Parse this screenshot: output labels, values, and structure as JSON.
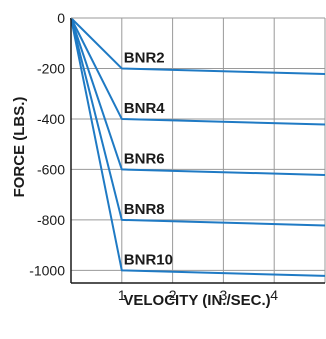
{
  "chart_data": {
    "type": "line",
    "xlabel": "VELOCITY (IN./SEC.)",
    "ylabel": "FORCE (LBS.)",
    "xlim": [
      0,
      5
    ],
    "ylim": [
      -1050,
      0
    ],
    "x_ticks": [
      "1",
      "2",
      "3",
      "4"
    ],
    "y_ticks": [
      "0",
      "-200",
      "-400",
      "-600",
      "-800",
      "-1000"
    ],
    "grid": true,
    "line_color": "#1f7ac4",
    "series": [
      {
        "name": "BNR2",
        "x": [
          0,
          1,
          5
        ],
        "y": [
          0,
          -200,
          -222
        ]
      },
      {
        "name": "BNR4",
        "x": [
          0,
          1,
          5
        ],
        "y": [
          0,
          -400,
          -422
        ]
      },
      {
        "name": "BNR6",
        "x": [
          0,
          1,
          5
        ],
        "y": [
          0,
          -600,
          -622
        ]
      },
      {
        "name": "BNR8",
        "x": [
          0,
          1,
          5
        ],
        "y": [
          0,
          -800,
          -822
        ]
      },
      {
        "name": "BNR10",
        "x": [
          0,
          1,
          5
        ],
        "y": [
          0,
          -1000,
          -1022
        ]
      }
    ]
  }
}
